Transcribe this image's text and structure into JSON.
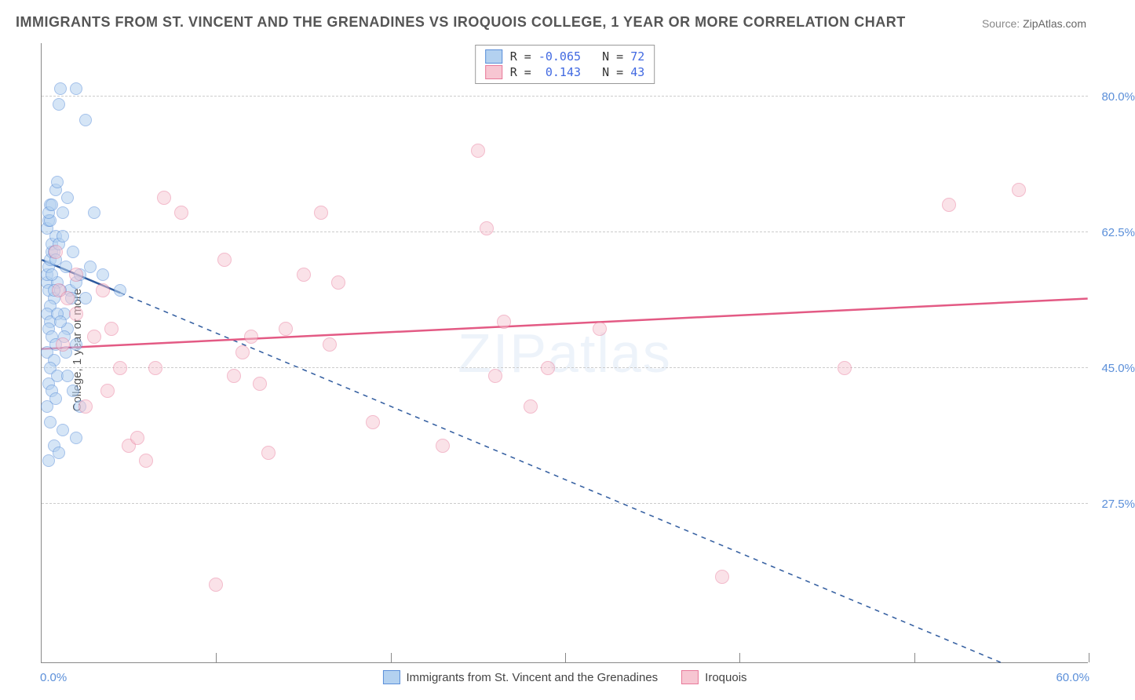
{
  "title": "IMMIGRANTS FROM ST. VINCENT AND THE GRENADINES VS IROQUOIS COLLEGE, 1 YEAR OR MORE CORRELATION CHART",
  "source_label": "Source:",
  "source_value": "ZipAtlas.com",
  "watermark": "ZIPatlas",
  "y_axis_title": "College, 1 year or more",
  "xlim": [
    0.0,
    60.0
  ],
  "ylim": [
    7.0,
    87.0
  ],
  "x_ticks": [
    0.0,
    10.0,
    20.0,
    30.0,
    40.0,
    50.0,
    60.0
  ],
  "x_tick_labels_shown": {
    "first": "0.0%",
    "last": "60.0%"
  },
  "y_ticks": [
    27.5,
    45.0,
    62.5,
    80.0
  ],
  "y_tick_labels": [
    "27.5%",
    "45.0%",
    "62.5%",
    "80.0%"
  ],
  "grid_color": "#cccccc",
  "axis_color": "#888888",
  "tick_label_color": "#5b8fd9",
  "series": [
    {
      "id": "svg_immigrants",
      "label": "Immigrants from St. Vincent and the Grenadines",
      "marker_fill": "#b3d1f0",
      "marker_stroke": "#5b8fd9",
      "marker_radius": 8,
      "fill_opacity": 0.55,
      "R": "-0.065",
      "N": "72",
      "trend": {
        "x1": 0.0,
        "y1": 59.0,
        "x2": 55.0,
        "y2": 7.0,
        "solid_until_x": 4.5,
        "color": "#2e5a9e",
        "width": 2.5,
        "dash": "6,6"
      },
      "points": [
        {
          "x": 0.3,
          "y": 56
        },
        {
          "x": 0.3,
          "y": 57
        },
        {
          "x": 0.4,
          "y": 58
        },
        {
          "x": 0.5,
          "y": 59
        },
        {
          "x": 0.6,
          "y": 60
        },
        {
          "x": 0.4,
          "y": 55
        },
        {
          "x": 0.7,
          "y": 54
        },
        {
          "x": 0.5,
          "y": 53
        },
        {
          "x": 0.6,
          "y": 61
        },
        {
          "x": 0.8,
          "y": 62
        },
        {
          "x": 0.3,
          "y": 63
        },
        {
          "x": 0.4,
          "y": 64
        },
        {
          "x": 0.5,
          "y": 66
        },
        {
          "x": 1.2,
          "y": 65
        },
        {
          "x": 1.5,
          "y": 67
        },
        {
          "x": 1.0,
          "y": 79
        },
        {
          "x": 1.1,
          "y": 81
        },
        {
          "x": 2.0,
          "y": 81
        },
        {
          "x": 2.5,
          "y": 77
        },
        {
          "x": 0.8,
          "y": 68
        },
        {
          "x": 0.9,
          "y": 69
        },
        {
          "x": 0.3,
          "y": 52
        },
        {
          "x": 0.5,
          "y": 51
        },
        {
          "x": 0.4,
          "y": 50
        },
        {
          "x": 0.6,
          "y": 49
        },
        {
          "x": 0.8,
          "y": 48
        },
        {
          "x": 0.3,
          "y": 47
        },
        {
          "x": 0.7,
          "y": 46
        },
        {
          "x": 0.5,
          "y": 45
        },
        {
          "x": 0.9,
          "y": 44
        },
        {
          "x": 0.4,
          "y": 43
        },
        {
          "x": 0.6,
          "y": 42
        },
        {
          "x": 0.8,
          "y": 41
        },
        {
          "x": 0.3,
          "y": 40
        },
        {
          "x": 0.5,
          "y": 38
        },
        {
          "x": 1.2,
          "y": 37
        },
        {
          "x": 0.7,
          "y": 35
        },
        {
          "x": 1.0,
          "y": 34
        },
        {
          "x": 0.4,
          "y": 33
        },
        {
          "x": 1.6,
          "y": 55
        },
        {
          "x": 2.0,
          "y": 56
        },
        {
          "x": 2.2,
          "y": 57
        },
        {
          "x": 3.0,
          "y": 65
        },
        {
          "x": 3.5,
          "y": 57
        },
        {
          "x": 2.8,
          "y": 58
        },
        {
          "x": 1.8,
          "y": 60
        },
        {
          "x": 2.5,
          "y": 54
        },
        {
          "x": 1.3,
          "y": 52
        },
        {
          "x": 1.5,
          "y": 50
        },
        {
          "x": 2.0,
          "y": 48
        },
        {
          "x": 0.9,
          "y": 56
        },
        {
          "x": 1.1,
          "y": 55
        },
        {
          "x": 1.4,
          "y": 58
        },
        {
          "x": 1.7,
          "y": 54
        },
        {
          "x": 0.6,
          "y": 57
        },
        {
          "x": 0.7,
          "y": 60
        },
        {
          "x": 0.8,
          "y": 59
        },
        {
          "x": 1.0,
          "y": 61
        },
        {
          "x": 1.2,
          "y": 62
        },
        {
          "x": 0.5,
          "y": 64
        },
        {
          "x": 0.4,
          "y": 65
        },
        {
          "x": 0.6,
          "y": 66
        },
        {
          "x": 0.9,
          "y": 52
        },
        {
          "x": 1.1,
          "y": 51
        },
        {
          "x": 1.3,
          "y": 49
        },
        {
          "x": 1.5,
          "y": 44
        },
        {
          "x": 1.8,
          "y": 42
        },
        {
          "x": 2.2,
          "y": 40
        },
        {
          "x": 2.0,
          "y": 36
        },
        {
          "x": 1.4,
          "y": 47
        },
        {
          "x": 0.7,
          "y": 55
        },
        {
          "x": 4.5,
          "y": 55
        }
      ]
    },
    {
      "id": "iroquois",
      "label": "Iroquois",
      "marker_fill": "#f7c6d2",
      "marker_stroke": "#e87a9a",
      "marker_radius": 9,
      "fill_opacity": 0.5,
      "R": "0.143",
      "N": "43",
      "trend": {
        "x1": 0.0,
        "y1": 47.5,
        "x2": 60.0,
        "y2": 54.0,
        "color": "#e35a84",
        "width": 2.5
      },
      "points": [
        {
          "x": 1.0,
          "y": 55
        },
        {
          "x": 1.5,
          "y": 54
        },
        {
          "x": 2.0,
          "y": 52
        },
        {
          "x": 0.8,
          "y": 60
        },
        {
          "x": 1.2,
          "y": 48
        },
        {
          "x": 3.0,
          "y": 49
        },
        {
          "x": 4.0,
          "y": 50
        },
        {
          "x": 2.5,
          "y": 40
        },
        {
          "x": 3.8,
          "y": 42
        },
        {
          "x": 5.0,
          "y": 35
        },
        {
          "x": 5.5,
          "y": 36
        },
        {
          "x": 6.0,
          "y": 33
        },
        {
          "x": 7.0,
          "y": 67
        },
        {
          "x": 8.0,
          "y": 65
        },
        {
          "x": 10.5,
          "y": 59
        },
        {
          "x": 11.0,
          "y": 44
        },
        {
          "x": 11.5,
          "y": 47
        },
        {
          "x": 12.0,
          "y": 49
        },
        {
          "x": 12.5,
          "y": 43
        },
        {
          "x": 13.0,
          "y": 34
        },
        {
          "x": 10.0,
          "y": 17
        },
        {
          "x": 14.0,
          "y": 50
        },
        {
          "x": 15.0,
          "y": 57
        },
        {
          "x": 16.0,
          "y": 65
        },
        {
          "x": 16.5,
          "y": 48
        },
        {
          "x": 17.0,
          "y": 56
        },
        {
          "x": 19.0,
          "y": 38
        },
        {
          "x": 23.0,
          "y": 35
        },
        {
          "x": 25.0,
          "y": 73
        },
        {
          "x": 25.5,
          "y": 63
        },
        {
          "x": 26.0,
          "y": 44
        },
        {
          "x": 26.5,
          "y": 51
        },
        {
          "x": 28.0,
          "y": 40
        },
        {
          "x": 32.0,
          "y": 50
        },
        {
          "x": 29.0,
          "y": 45
        },
        {
          "x": 39.0,
          "y": 18
        },
        {
          "x": 46.0,
          "y": 45
        },
        {
          "x": 52.0,
          "y": 66
        },
        {
          "x": 56.0,
          "y": 68
        },
        {
          "x": 2.0,
          "y": 57
        },
        {
          "x": 3.5,
          "y": 55
        },
        {
          "x": 4.5,
          "y": 45
        },
        {
          "x": 6.5,
          "y": 45
        }
      ]
    }
  ],
  "legend_top_format": {
    "R_label": "R =",
    "N_label": "N ="
  },
  "bottom_legend": [
    {
      "series": "svg_immigrants"
    },
    {
      "series": "iroquois"
    }
  ]
}
